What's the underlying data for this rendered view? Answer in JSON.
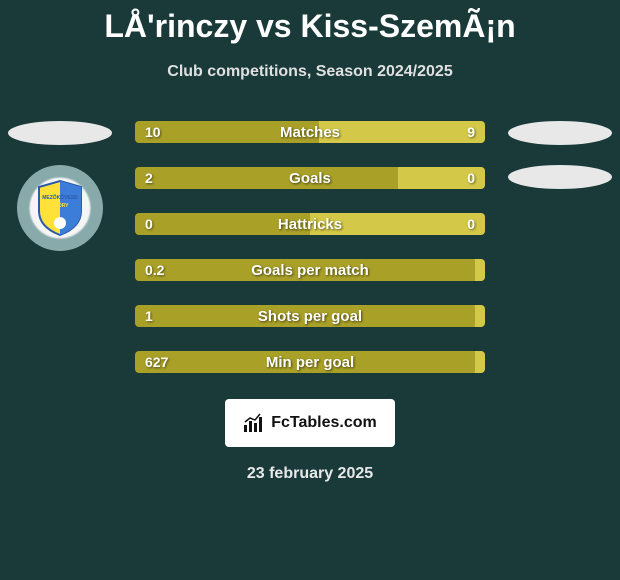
{
  "title": "LÅ'rinczy vs Kiss-SzemÃ¡n",
  "subtitle": "Club competitions, Season 2024/2025",
  "colors": {
    "left": "#a9a028",
    "right": "#d4c848",
    "oval": "#e8e8e8"
  },
  "stats": [
    {
      "label": "Matches",
      "left_val": "10",
      "right_val": "9",
      "left_pct": 52.6,
      "right_pct": 47.4
    },
    {
      "label": "Goals",
      "left_val": "2",
      "right_val": "0",
      "left_pct": 75.0,
      "right_pct": 25.0
    },
    {
      "label": "Hattricks",
      "left_val": "0",
      "right_val": "0",
      "left_pct": 50.0,
      "right_pct": 50.0
    },
    {
      "label": "Goals per match",
      "left_val": "0.2",
      "right_val": "",
      "left_pct": 97.0,
      "right_pct": 3.0
    },
    {
      "label": "Shots per goal",
      "left_val": "1",
      "right_val": "",
      "left_pct": 97.0,
      "right_pct": 3.0
    },
    {
      "label": "Min per goal",
      "left_val": "627",
      "right_val": "",
      "left_pct": 97.0,
      "right_pct": 3.0
    }
  ],
  "brand": "FcTables.com",
  "date": "23 february 2025"
}
